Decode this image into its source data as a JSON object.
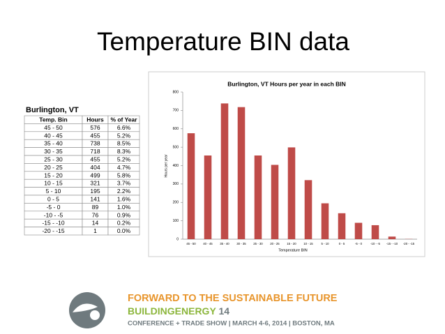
{
  "title": "Temperature BIN data",
  "table": {
    "caption": "Burlington, VT",
    "header": [
      "Temp. Bin",
      "Hours",
      "% of Year"
    ],
    "rows": [
      [
        "45 - 50",
        576,
        "6.6%"
      ],
      [
        "40 - 45",
        455,
        "5.2%"
      ],
      [
        "35 - 40",
        738,
        "8.5%"
      ],
      [
        "30 - 35",
        718,
        "8.3%"
      ],
      [
        "25 - 30",
        455,
        "5.2%"
      ],
      [
        "20 - 25",
        404,
        "4.7%"
      ],
      [
        "15 - 20",
        499,
        "5.8%"
      ],
      [
        "10 - 15",
        321,
        "3.7%"
      ],
      [
        "5 - 10",
        195,
        "2.2%"
      ],
      [
        "0 - 5",
        141,
        "1.6%"
      ],
      [
        "-5 - 0",
        89,
        "1.0%"
      ],
      [
        "-10 - -5",
        76,
        "0.9%"
      ],
      [
        "-15 - -10",
        14,
        "0.2%"
      ],
      [
        "-20 - -15",
        1,
        "0.0%"
      ]
    ]
  },
  "chart_data": {
    "type": "bar",
    "title": "Burlington, VT Hours per year in each BIN",
    "x_label": "Temperature BIN",
    "y_label": "Hours per year",
    "categories": [
      "45 - 50",
      "40 - 45",
      "35 - 40",
      "30 - 35",
      "25 - 30",
      "20 - 25",
      "15 - 20",
      "10 - 15",
      "5 - 10",
      "0 - 5",
      "-5 - 0",
      "-10 - -5",
      "-15 - -10",
      "-20 - -15"
    ],
    "values": [
      576,
      455,
      738,
      718,
      455,
      404,
      499,
      321,
      195,
      141,
      89,
      76,
      14,
      1
    ],
    "color": "#bf4b48",
    "ylim": [
      0,
      800
    ],
    "yticks": [
      0,
      100,
      200,
      300,
      400,
      500,
      600,
      700,
      800
    ],
    "grid": false
  },
  "banner": {
    "headline": "FORWARD TO THE SUSTAINABLE FUTURE",
    "brand": "BUILDINGENERGY",
    "edition": "14",
    "details": "CONFERENCE + TRADE SHOW | MARCH 4-6, 2014 | BOSTON, MA"
  }
}
